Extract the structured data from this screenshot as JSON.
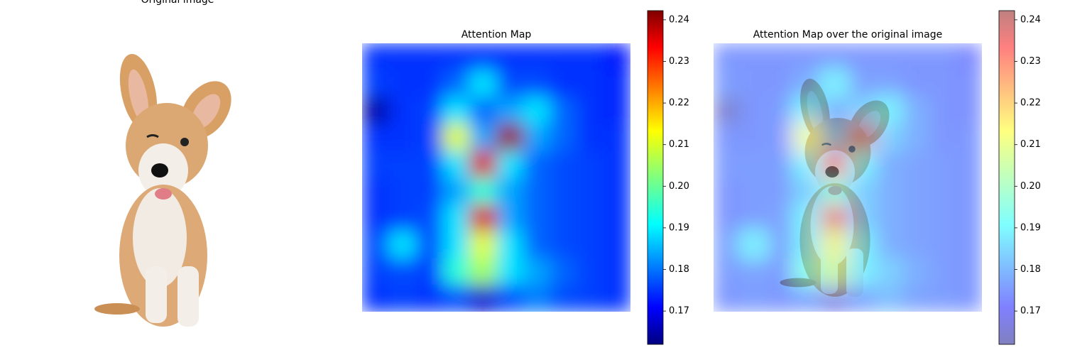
{
  "chart_data": [
    {
      "type": "image",
      "title": "Original image"
    },
    {
      "type": "heatmap",
      "title": "Attention Map",
      "colormap": "jet",
      "zlim": [
        0.162,
        0.2422
      ],
      "zticks": [
        0.17,
        0.18,
        0.19,
        {
          "value": 0.2,
          "label": "0.20"
        },
        0.21,
        0.22,
        0.23,
        0.24
      ],
      "values": [
        [
          0.176,
          0.176,
          0.176,
          0.176,
          0.176,
          0.176,
          0.176,
          0.176,
          0.176,
          0.174
        ],
        [
          0.177,
          0.176,
          0.176,
          0.18,
          0.19,
          0.178,
          0.178,
          0.176,
          0.176,
          0.175
        ],
        [
          0.165,
          0.176,
          0.177,
          0.19,
          0.18,
          0.185,
          0.19,
          0.18,
          0.176,
          0.175
        ],
        [
          0.176,
          0.176,
          0.177,
          0.21,
          0.185,
          0.24,
          0.185,
          0.18,
          0.176,
          0.176
        ],
        [
          0.177,
          0.177,
          0.177,
          0.19,
          0.235,
          0.19,
          0.18,
          0.178,
          0.177,
          0.176
        ],
        [
          0.176,
          0.177,
          0.177,
          0.185,
          0.195,
          0.185,
          0.18,
          0.178,
          0.177,
          0.176
        ],
        [
          0.176,
          0.177,
          0.178,
          0.19,
          0.235,
          0.185,
          0.18,
          0.178,
          0.177,
          0.176
        ],
        [
          0.178,
          0.19,
          0.178,
          0.19,
          0.21,
          0.19,
          0.18,
          0.178,
          0.177,
          0.176
        ],
        [
          0.177,
          0.178,
          0.177,
          0.195,
          0.205,
          0.19,
          0.185,
          0.18,
          0.177,
          0.176
        ],
        [
          0.176,
          0.177,
          0.176,
          0.178,
          0.168,
          0.178,
          0.182,
          0.178,
          0.177,
          0.176
        ]
      ]
    },
    {
      "type": "heatmap_overlay",
      "title": "Attention Map over the original image",
      "alpha": 0.5
    }
  ]
}
